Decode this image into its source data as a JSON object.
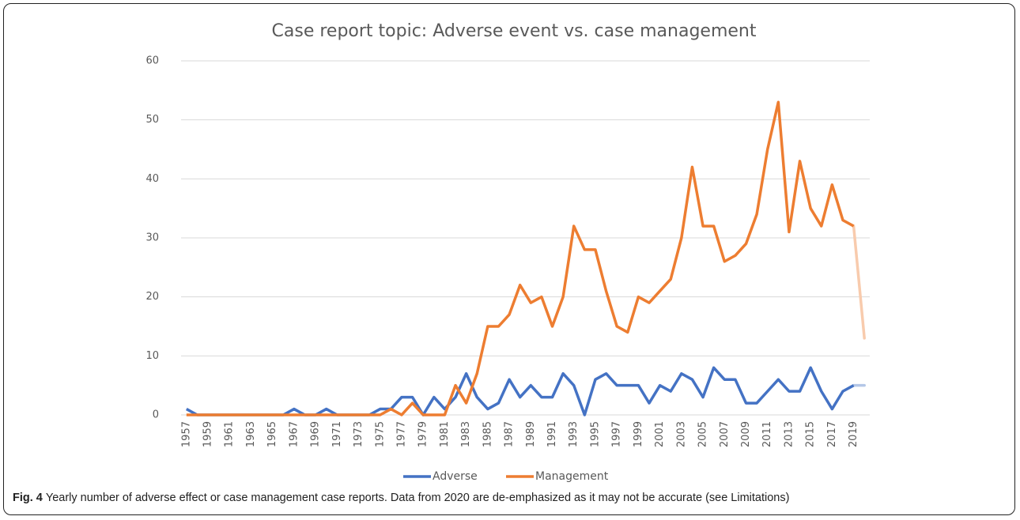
{
  "chart_data": {
    "type": "line",
    "title": "Case report topic: Adverse event vs. case management",
    "categories": [
      "1957",
      null,
      "1959",
      null,
      "1961",
      null,
      "1963",
      null,
      "1965",
      null,
      "1967",
      null,
      "1969",
      null,
      "1971",
      null,
      "1973",
      null,
      "1975",
      null,
      "1977",
      null,
      "1979",
      null,
      "1981",
      null,
      "1983",
      null,
      "1985",
      null,
      "1987",
      null,
      "1989",
      null,
      "1991",
      null,
      "1993",
      null,
      "1995",
      null,
      "1997",
      null,
      "1999",
      null,
      "2001",
      null,
      "2003",
      null,
      "2005",
      null,
      "2007",
      null,
      "2009",
      null,
      "2011",
      null,
      "2013",
      null,
      "2015",
      null,
      "2017",
      null,
      "2019",
      null
    ],
    "series": [
      {
        "name": "Adverse",
        "color": "#4472c4",
        "faded_color": "#b4c7e7",
        "values": [
          1,
          0,
          0,
          0,
          0,
          0,
          0,
          0,
          0,
          0,
          1,
          0,
          0,
          1,
          0,
          0,
          0,
          0,
          1,
          1,
          3,
          3,
          0,
          3,
          1,
          3,
          7,
          3,
          1,
          2,
          6,
          3,
          5,
          3,
          3,
          7,
          5,
          0,
          6,
          7,
          5,
          5,
          5,
          2,
          5,
          4,
          7,
          6,
          3,
          8,
          6,
          6,
          2,
          2,
          4,
          6,
          4,
          4,
          8,
          4,
          1,
          4,
          5,
          5
        ]
      },
      {
        "name": "Management",
        "color": "#ed7d31",
        "faded_color": "#f8cbad",
        "values": [
          0,
          0,
          0,
          0,
          0,
          0,
          0,
          0,
          0,
          0,
          0,
          0,
          0,
          0,
          0,
          0,
          0,
          0,
          0,
          1,
          0,
          2,
          0,
          0,
          0,
          5,
          2,
          7,
          15,
          15,
          17,
          22,
          19,
          20,
          15,
          20,
          32,
          28,
          28,
          21,
          15,
          14,
          20,
          19,
          21,
          23,
          30,
          42,
          32,
          32,
          26,
          27,
          29,
          34,
          45,
          53,
          31,
          43,
          35,
          32,
          39,
          33,
          32,
          13
        ]
      }
    ],
    "ylim": [
      0,
      60
    ],
    "yticks": [
      0,
      10,
      20,
      30,
      40,
      50,
      60
    ],
    "grid": true,
    "legend": "bottom"
  },
  "caption": {
    "label": "Fig. 4",
    "text": "Yearly number of adverse effect or case management case reports. Data from 2020 are de-emphasized as it may not be accurate (see Limitations)"
  }
}
